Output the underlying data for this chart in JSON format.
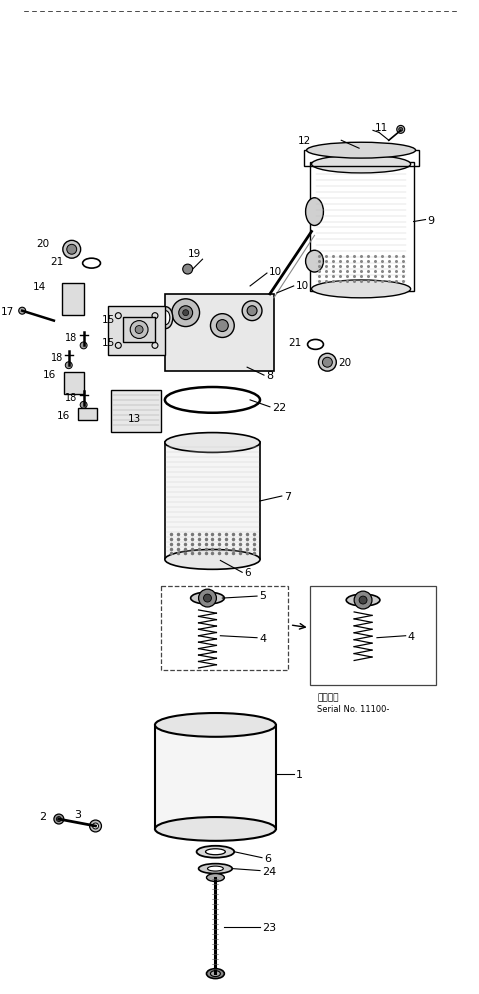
{
  "bg_color": "#ffffff",
  "line_color": "#000000",
  "fig_width": 4.79,
  "fig_height": 9.95,
  "serial_line1": "通用号数",
  "serial_line2": "Serial No. 11100-"
}
